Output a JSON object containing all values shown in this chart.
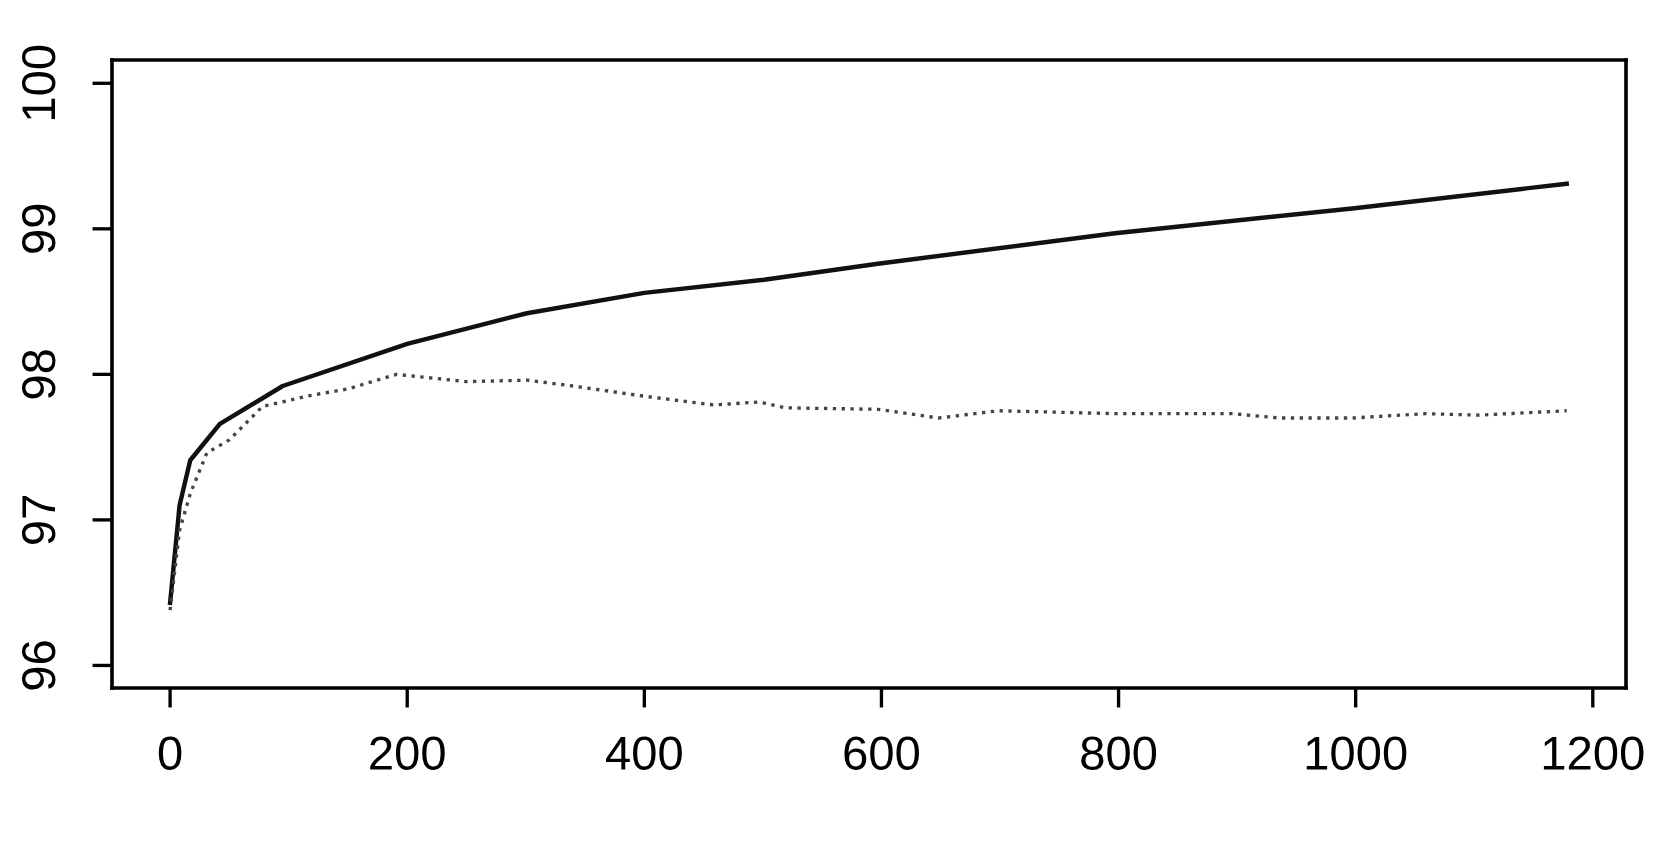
{
  "chart_data": {
    "type": "line",
    "xlim": [
      -49,
      1228
    ],
    "ylim": [
      95.845,
      100.16
    ],
    "xticks": [
      0,
      200,
      400,
      600,
      800,
      1000,
      1200
    ],
    "yticks": [
      96,
      97,
      98,
      99,
      100
    ],
    "grid": false,
    "legend": false,
    "series": [
      {
        "color": "#111111",
        "line_style": "solid",
        "x": [
          0,
          8,
          17,
          42,
          95,
          200,
          301,
          400,
          501,
          597,
          797,
          997,
          1178
        ],
        "values": [
          96.43,
          97.1,
          97.41,
          97.66,
          97.92,
          98.21,
          98.42,
          98.56,
          98.65,
          98.76,
          98.97,
          99.14,
          99.31
        ]
      },
      {
        "color": "#444444",
        "line_style": "dotted",
        "x": [
          0,
          8,
          17,
          31,
          50,
          78,
          115,
          150,
          191,
          250,
          301,
          340,
          400,
          458,
          497,
          519,
          597,
          648,
          699,
          797,
          896,
          936,
          997,
          1059,
          1104,
          1178
        ],
        "values": [
          96.38,
          96.93,
          97.18,
          97.46,
          97.55,
          97.78,
          97.85,
          97.9,
          98.0,
          97.95,
          97.96,
          97.92,
          97.85,
          97.79,
          97.81,
          97.77,
          97.76,
          97.7,
          97.75,
          97.73,
          97.73,
          97.7,
          97.7,
          97.73,
          97.72,
          97.75
        ]
      }
    ]
  }
}
